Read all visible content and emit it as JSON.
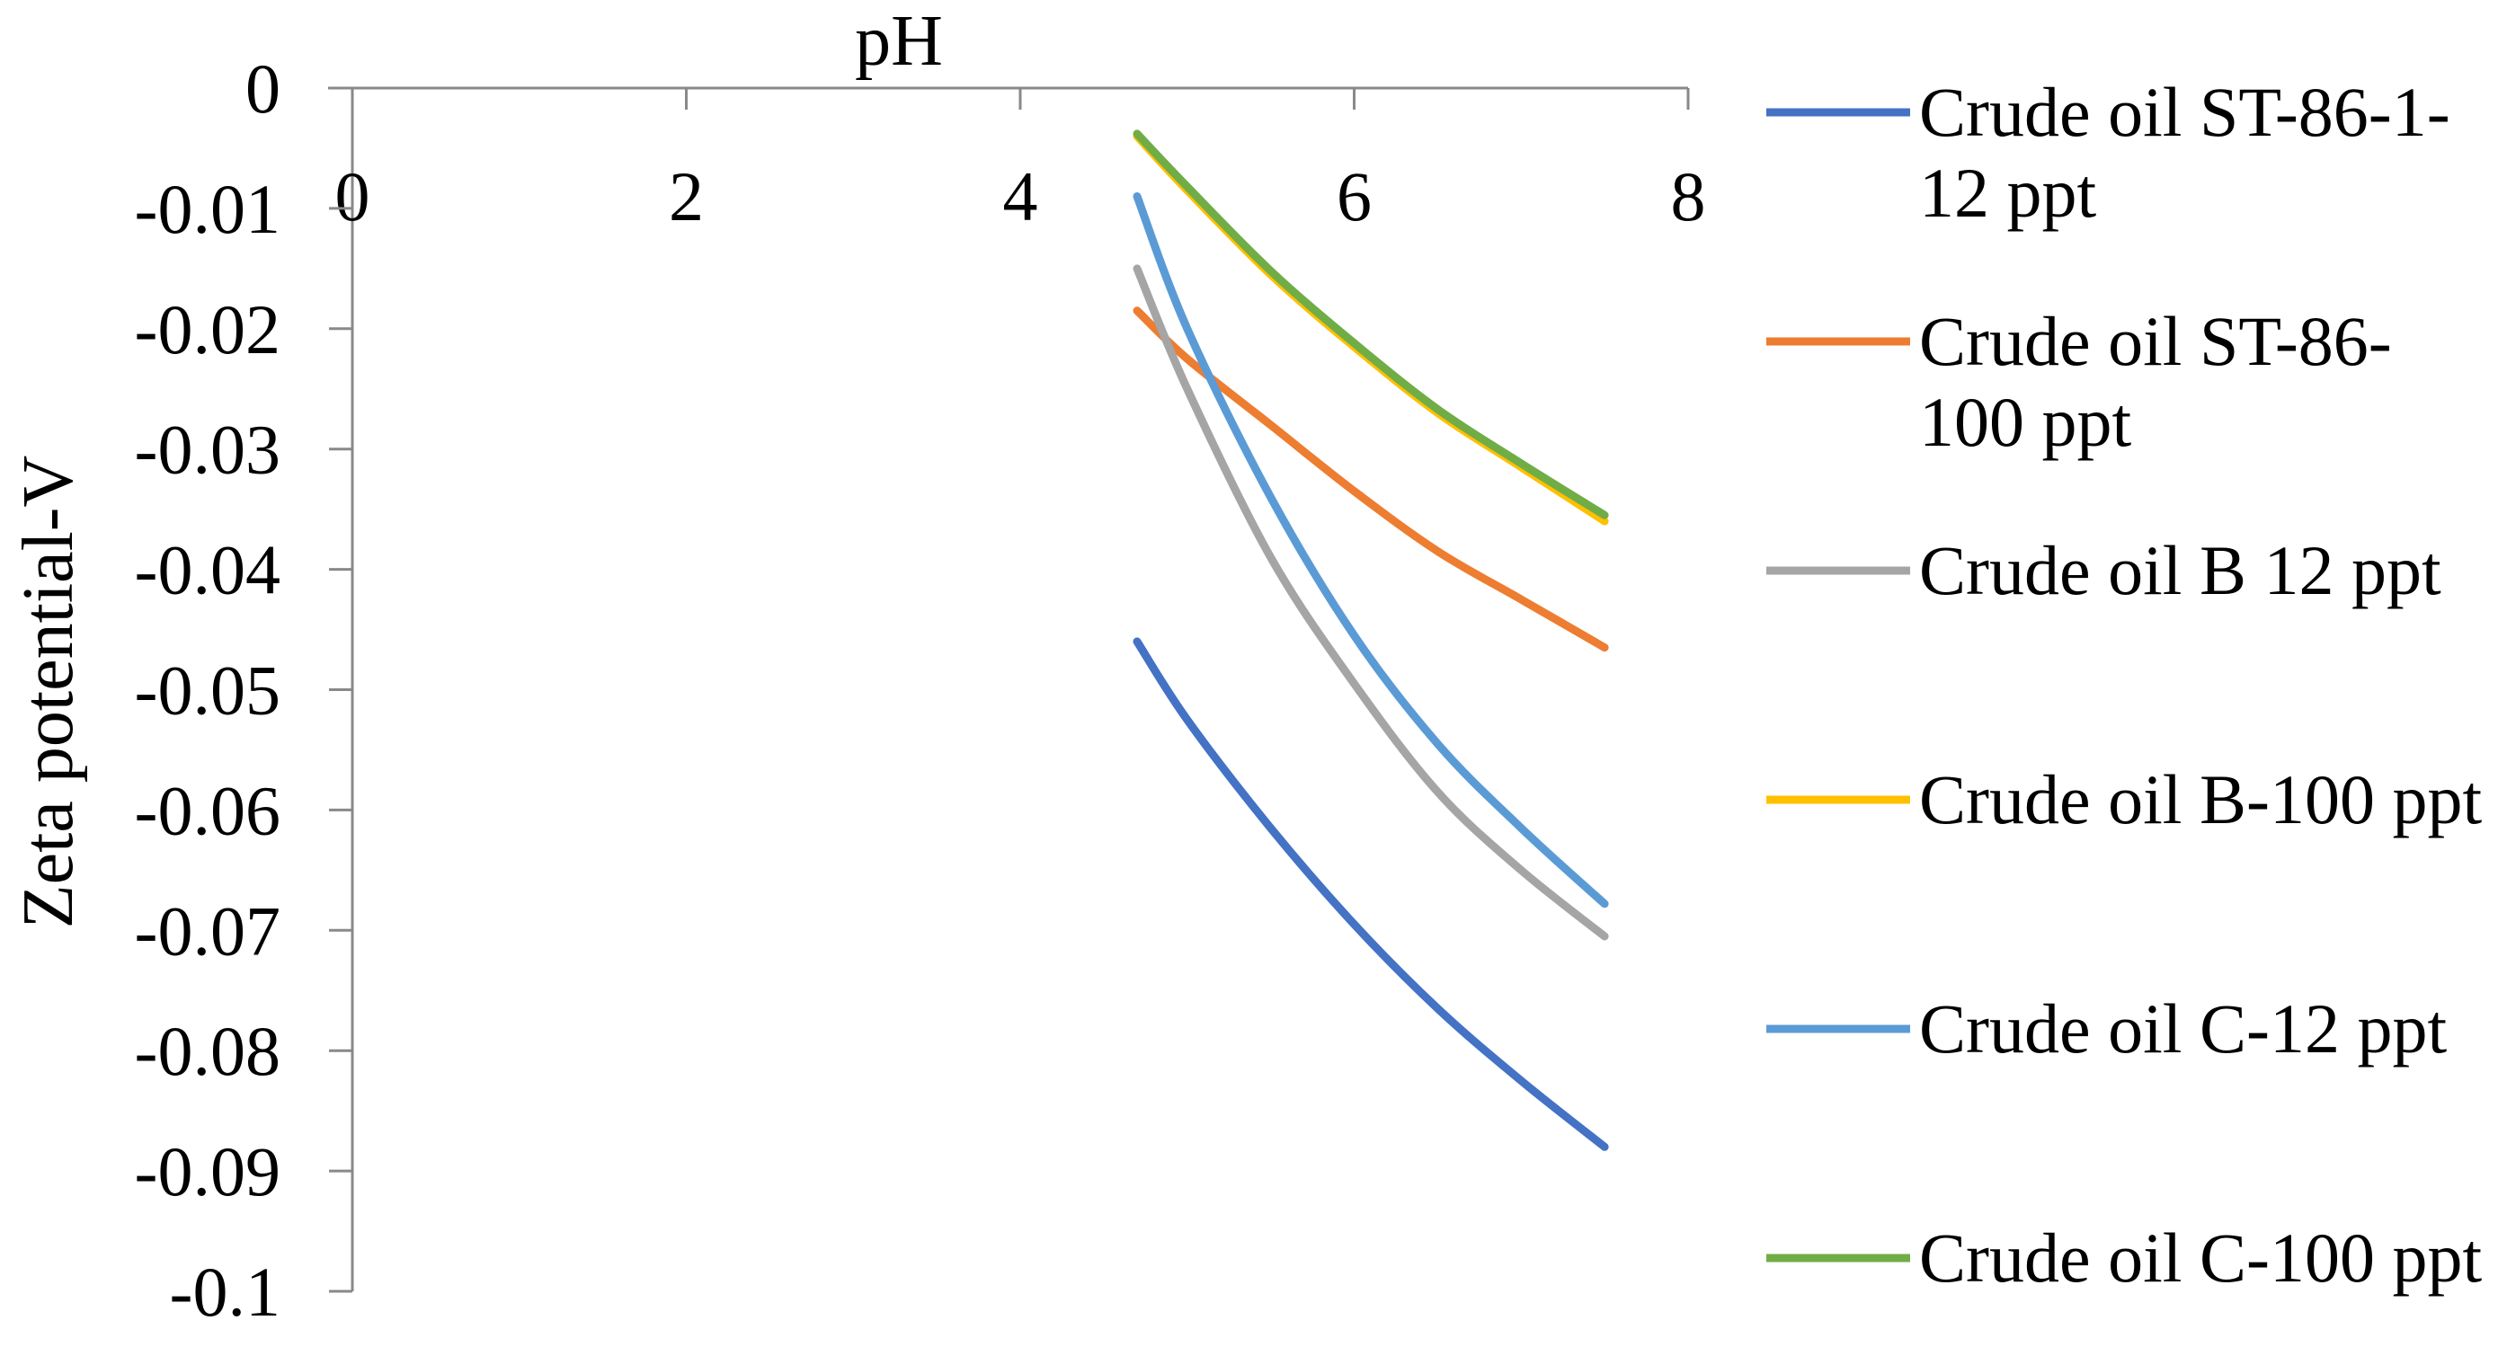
{
  "chart_data": {
    "type": "line",
    "xlabel": "pH",
    "ylabel": "Zeta potential-V",
    "xlim": [
      0,
      8
    ],
    "ylim": [
      -0.1,
      0
    ],
    "x_ticks": [
      0,
      2,
      4,
      6,
      8
    ],
    "x_tick_labels": [
      "0",
      "2",
      "4",
      "6",
      "8"
    ],
    "y_ticks": [
      0,
      -0.01,
      -0.02,
      -0.03,
      -0.04,
      -0.05,
      -0.06,
      -0.07,
      -0.08,
      -0.09,
      -0.1
    ],
    "y_tick_labels": [
      "0",
      "-0.01",
      "-0.02",
      "-0.03",
      "-0.04",
      "-0.05",
      "-0.06",
      "-0.07",
      "-0.08",
      "-0.09",
      "-0.1"
    ],
    "x_axis_position": "top",
    "grid": false,
    "legend_position": "right",
    "series": [
      {
        "name": "Crude oil ST-86-1-12 ppt",
        "legend_lines": [
          "Crude oil ST-86-1-",
          "12 ppt"
        ],
        "color": "#4472C4",
        "x": [
          4.7,
          5.0,
          5.5,
          6.0,
          6.5,
          7.0,
          7.5
        ],
        "y": [
          -0.046,
          -0.0525,
          -0.0615,
          -0.0695,
          -0.0765,
          -0.0825,
          -0.088
        ]
      },
      {
        "name": "Crude oil ST-86-100 ppt",
        "legend_lines": [
          "Crude oil ST-86-",
          "100 ppt"
        ],
        "color": "#ED7D31",
        "x": [
          4.7,
          5.0,
          5.5,
          6.0,
          6.5,
          7.0,
          7.5
        ],
        "y": [
          -0.0185,
          -0.0225,
          -0.028,
          -0.0335,
          -0.0385,
          -0.0425,
          -0.0465
        ]
      },
      {
        "name": "Crude oil B 12 ppt",
        "legend_lines": [
          "Crude oil B 12 ppt"
        ],
        "color": "#A5A5A5",
        "x": [
          4.7,
          5.0,
          5.5,
          6.0,
          6.5,
          7.0,
          7.5
        ],
        "y": [
          -0.015,
          -0.025,
          -0.039,
          -0.0495,
          -0.0585,
          -0.065,
          -0.0705
        ]
      },
      {
        "name": "Crude oil B-100 ppt",
        "legend_lines": [
          "Crude oil B-100 ppt"
        ],
        "color": "#FFC000",
        "x": [
          4.7,
          5.0,
          5.5,
          6.0,
          6.5,
          7.0,
          7.5
        ],
        "y": [
          -0.004,
          -0.0085,
          -0.0155,
          -0.0215,
          -0.027,
          -0.0315,
          -0.036
        ]
      },
      {
        "name": "Crude oil C-12 ppt",
        "legend_lines": [
          "Crude oil C-12 ppt"
        ],
        "color": "#5B9BD5",
        "x": [
          4.7,
          5.0,
          5.5,
          6.0,
          6.5,
          7.0,
          7.5
        ],
        "y": [
          -0.009,
          -0.02,
          -0.034,
          -0.0455,
          -0.0545,
          -0.0615,
          -0.0678
        ]
      },
      {
        "name": "Crude oil C-100 ppt",
        "legend_lines": [
          "Crude oil C-100 ppt"
        ],
        "color": "#70AD47",
        "x": [
          4.7,
          5.0,
          5.5,
          6.0,
          6.5,
          7.0,
          7.5
        ],
        "y": [
          -0.0038,
          -0.0082,
          -0.0152,
          -0.0212,
          -0.0267,
          -0.0312,
          -0.0355
        ]
      }
    ]
  }
}
